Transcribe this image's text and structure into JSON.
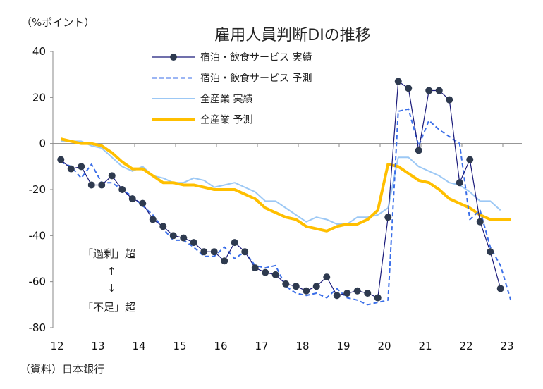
{
  "header": {
    "unit_label": "（%ポイント）",
    "title": "雇用人員判断DIの推移"
  },
  "annotations": {
    "excess_label": "「過剰」超",
    "arrow_up": "↑",
    "arrow_down": "↓",
    "shortage_label": "「不足」超"
  },
  "footer": {
    "source": "（資料）日本銀行"
  },
  "colors": {
    "hotel_actual": "#1a1a7a",
    "hotel_marker": "#2e3a4f",
    "hotel_forecast": "#3a6ee8",
    "all_actual": "#9cc8f5",
    "all_forecast": "#ffbf00",
    "axis": "#888888"
  },
  "chart_data": {
    "type": "line",
    "title": "雇用人員判断DIの推移",
    "xlabel": "",
    "ylabel": "（%ポイント）",
    "ylim": [
      -80,
      40
    ],
    "yticks": [
      40,
      20,
      0,
      -20,
      -40,
      -60,
      -80
    ],
    "xticks": [
      "12",
      "13",
      "14",
      "15",
      "16",
      "17",
      "18",
      "19",
      "20",
      "21",
      "22",
      "23"
    ],
    "x_start_year": 2012,
    "frequency": "quarterly",
    "legend_position": "top-center",
    "grid": false,
    "series": [
      {
        "name": "宿泊・飲食サービス 実績",
        "key": "hotel_actual",
        "style": "solid-markers",
        "values": [
          -7,
          -11,
          -10,
          -18,
          -18,
          -14,
          -20,
          -24,
          -26,
          -33,
          -36,
          -40,
          -41,
          -43,
          -47,
          -47,
          -51,
          -43,
          -47,
          -54,
          -56,
          -57,
          -61,
          -62,
          -64,
          -62,
          -58,
          -66,
          -65,
          -64,
          -65,
          -67,
          -32,
          27,
          24,
          -3,
          23,
          23,
          19,
          -17,
          -7,
          -34,
          -47,
          -63
        ]
      },
      {
        "name": "宿泊・飲食サービス 予測",
        "key": "hotel_forecast",
        "style": "dashed",
        "values": [
          -8,
          -10,
          -15,
          -9,
          -17,
          -17,
          -20,
          -23,
          -27,
          -31,
          -37,
          -42,
          -42,
          -45,
          -49,
          -49,
          -45,
          -50,
          -47,
          -53,
          -54,
          -53,
          -62,
          -65,
          -66,
          -65,
          -67,
          -63,
          -67,
          -68,
          -70,
          -69,
          -68,
          14,
          15,
          -1,
          10,
          6,
          3,
          0,
          -33,
          -29,
          -45,
          -53,
          -68
        ]
      },
      {
        "name": "全産業 実績",
        "key": "all_actual",
        "style": "solid-thin",
        "values": [
          1,
          1,
          1,
          -1,
          -2,
          -6,
          -10,
          -12,
          -10,
          -14,
          -15,
          -17,
          -17,
          -15,
          -16,
          -19,
          -18,
          -17,
          -19,
          -21,
          -25,
          -25,
          -28,
          -31,
          -34,
          -32,
          -33,
          -35,
          -35,
          -32,
          -32,
          -31,
          -28,
          -6,
          -6,
          -10,
          -12,
          -14,
          -17,
          -18,
          -21,
          -25,
          -25,
          -29
        ]
      },
      {
        "name": "全産業 予測",
        "key": "all_forecast",
        "style": "solid-thick",
        "values": [
          2,
          1,
          0,
          0,
          -1,
          -4,
          -8,
          -11,
          -11,
          -14,
          -17,
          -17,
          -18,
          -18,
          -19,
          -20,
          -20,
          -20,
          -22,
          -24,
          -28,
          -30,
          -32,
          -33,
          -36,
          -37,
          -38,
          -36,
          -35,
          -35,
          -33,
          -29,
          -9,
          -10,
          -13,
          -16,
          -17,
          -20,
          -24,
          -26,
          -28,
          -31,
          -33,
          -33,
          -33
        ]
      }
    ]
  }
}
